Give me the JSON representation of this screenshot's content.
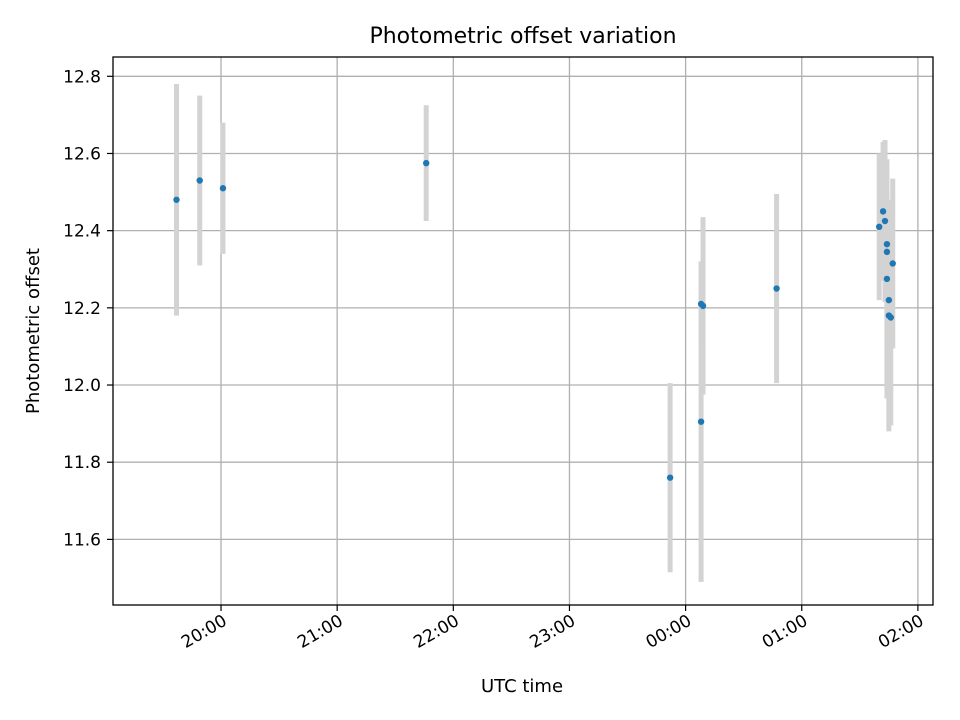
{
  "chart_data": {
    "type": "scatter",
    "title": "Photometric offset variation",
    "xlabel": "UTC time",
    "ylabel": "Photometric offset",
    "grid": true,
    "x_ticks": [
      "20:00",
      "21:00",
      "22:00",
      "23:00",
      "00:00",
      "01:00",
      "02:00"
    ],
    "x_tick_hours": [
      20,
      21,
      22,
      23,
      24,
      25,
      26
    ],
    "xlim_hours": [
      19.07,
      26.13
    ],
    "y_ticks": [
      "11.6",
      "11.8",
      "12.0",
      "12.2",
      "12.4",
      "12.6",
      "12.8"
    ],
    "y_tick_values": [
      11.6,
      11.8,
      12.0,
      12.2,
      12.4,
      12.6,
      12.8
    ],
    "ylim": [
      11.43,
      12.85
    ],
    "colors": {
      "marker": "#1f77b4",
      "errorbar": "#d3d3d3",
      "grid": "#b0b0b0"
    },
    "series": [
      {
        "points": [
          {
            "t": "19:37",
            "y": 12.48,
            "err": 0.3
          },
          {
            "t": "19:49",
            "y": 12.53,
            "err": 0.22
          },
          {
            "t": "20:01",
            "y": 12.51,
            "err": 0.17
          },
          {
            "t": "21:46",
            "y": 12.575,
            "err": 0.15
          },
          {
            "t": "23:52",
            "y": 11.76,
            "err": 0.245
          },
          {
            "t": "00:08",
            "y": 11.905,
            "err": 0.415
          },
          {
            "t": "00:08",
            "y": 12.21,
            "err": 0.11
          },
          {
            "t": "00:09",
            "y": 12.205,
            "err": 0.23
          },
          {
            "t": "00:47",
            "y": 12.25,
            "err": 0.245
          },
          {
            "t": "01:40",
            "y": 12.41,
            "err": 0.19
          },
          {
            "t": "01:42",
            "y": 12.45,
            "err": 0.18
          },
          {
            "t": "01:43",
            "y": 12.425,
            "err": 0.21
          },
          {
            "t": "01:44",
            "y": 12.365,
            "err": 0.2
          },
          {
            "t": "01:44",
            "y": 12.275,
            "err": 0.31
          },
          {
            "t": "01:44",
            "y": 12.345,
            "err": 0.17
          },
          {
            "t": "01:45",
            "y": 12.22,
            "err": 0.26
          },
          {
            "t": "01:45",
            "y": 12.18,
            "err": 0.3
          },
          {
            "t": "01:46",
            "y": 12.175,
            "err": 0.28
          },
          {
            "t": "01:47",
            "y": 12.315,
            "err": 0.22
          }
        ]
      }
    ]
  }
}
